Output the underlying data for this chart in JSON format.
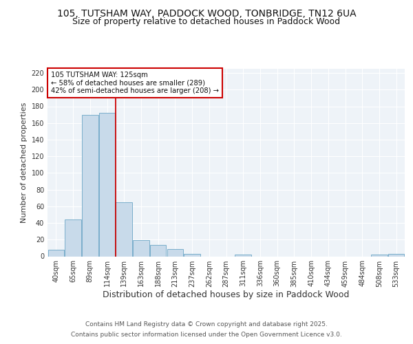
{
  "title1": "105, TUTSHAM WAY, PADDOCK WOOD, TONBRIDGE, TN12 6UA",
  "title2": "Size of property relative to detached houses in Paddock Wood",
  "xlabel": "Distribution of detached houses by size in Paddock Wood",
  "ylabel": "Number of detached properties",
  "categories": [
    "40sqm",
    "65sqm",
    "89sqm",
    "114sqm",
    "139sqm",
    "163sqm",
    "188sqm",
    "213sqm",
    "237sqm",
    "262sqm",
    "287sqm",
    "311sqm",
    "336sqm",
    "360sqm",
    "385sqm",
    "410sqm",
    "434sqm",
    "459sqm",
    "484sqm",
    "508sqm",
    "533sqm"
  ],
  "values": [
    8,
    44,
    170,
    172,
    65,
    19,
    14,
    9,
    3,
    0,
    0,
    2,
    0,
    0,
    0,
    0,
    0,
    0,
    0,
    2,
    3
  ],
  "bar_color": "#c8daea",
  "bar_edge_color": "#7aaecb",
  "vline_x": 3.5,
  "vline_color": "#cc0000",
  "annotation_text": "105 TUTSHAM WAY: 125sqm\n← 58% of detached houses are smaller (289)\n42% of semi-detached houses are larger (208) →",
  "annotation_box_color": "#ffffff",
  "annotation_box_edge": "#cc0000",
  "ylim": [
    0,
    225
  ],
  "yticks": [
    0,
    20,
    40,
    60,
    80,
    100,
    120,
    140,
    160,
    180,
    200,
    220
  ],
  "footer1": "Contains HM Land Registry data © Crown copyright and database right 2025.",
  "footer2": "Contains public sector information licensed under the Open Government Licence v3.0.",
  "bg_color": "#ffffff",
  "plot_bg_color": "#eef3f8",
  "grid_color": "#ffffff",
  "title_fontsize": 10,
  "subtitle_fontsize": 9,
  "xlabel_fontsize": 9,
  "ylabel_fontsize": 8,
  "tick_fontsize": 7,
  "footer_fontsize": 6.5
}
